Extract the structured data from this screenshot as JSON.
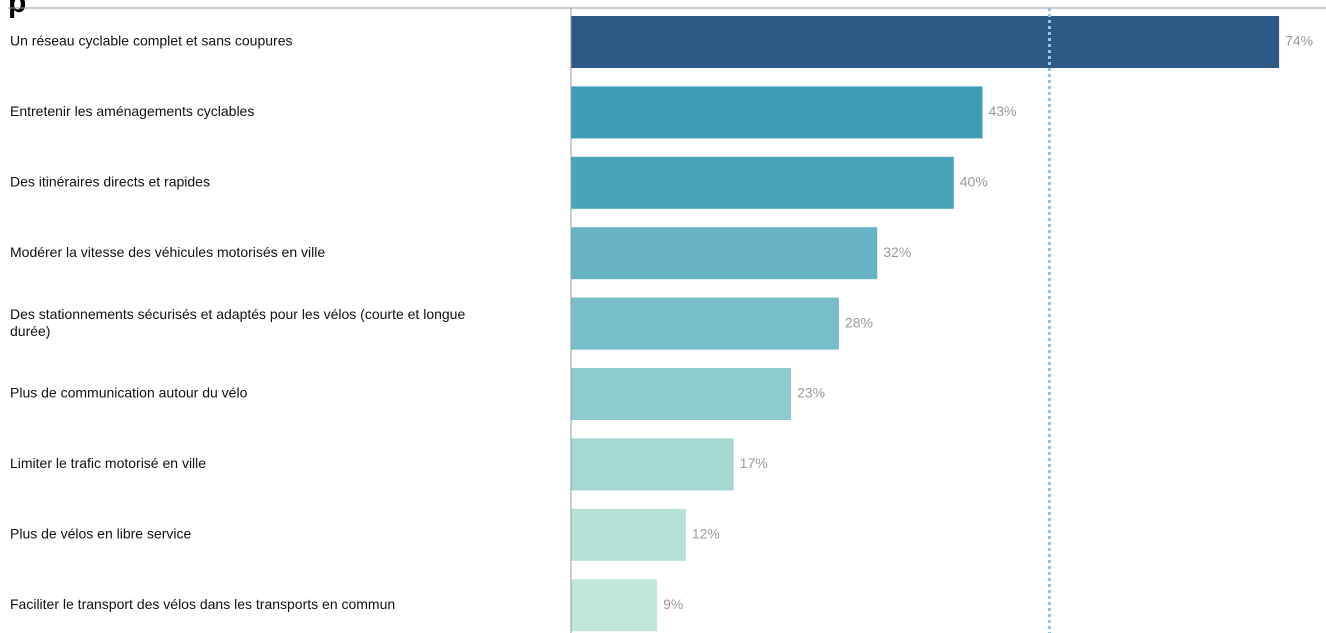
{
  "chart_data": {
    "type": "bar",
    "orientation": "horizontal",
    "title": "",
    "xlabel": "",
    "ylabel": "",
    "xlim": [
      0,
      78.9
    ],
    "grid": false,
    "legend": "none",
    "categories": [
      [
        "Un réseau cyclable complet et sans coupures"
      ],
      [
        "Entretenir les aménagements cyclables"
      ],
      [
        "Des itinéraires directs et rapides"
      ],
      [
        "Modérer la vitesse des véhicules motorisés en ville"
      ],
      [
        "Des stationnements sécurisés et adaptés pour les vélos (courte et longue",
        "durée)"
      ],
      [
        "Plus de communication autour du vélo"
      ],
      [
        "Limiter le trafic motorisé en ville"
      ],
      [
        "Plus de vélos en libre service"
      ],
      [
        "Faciliter le transport des vélos dans les transports en commun"
      ]
    ],
    "values": [
      74,
      43,
      40,
      32,
      28,
      23,
      17,
      12,
      9
    ],
    "data_labels": [
      "74%",
      "43%",
      "40%",
      "32%",
      "28%",
      "23%",
      "17%",
      "12%",
      "9%"
    ],
    "reference_line": {
      "value": 50,
      "style": "dotted"
    },
    "colors": [
      "#2d5886",
      "#3d9bb6",
      "#47a4ba",
      "#65b3c3",
      "#78bec9",
      "#8ecbce",
      "#a4d8d3",
      "#b4e0d6",
      "#c1e6da"
    ],
    "reference_line_color": "#8ec6e8",
    "axis_color": "#9a9a9a"
  }
}
